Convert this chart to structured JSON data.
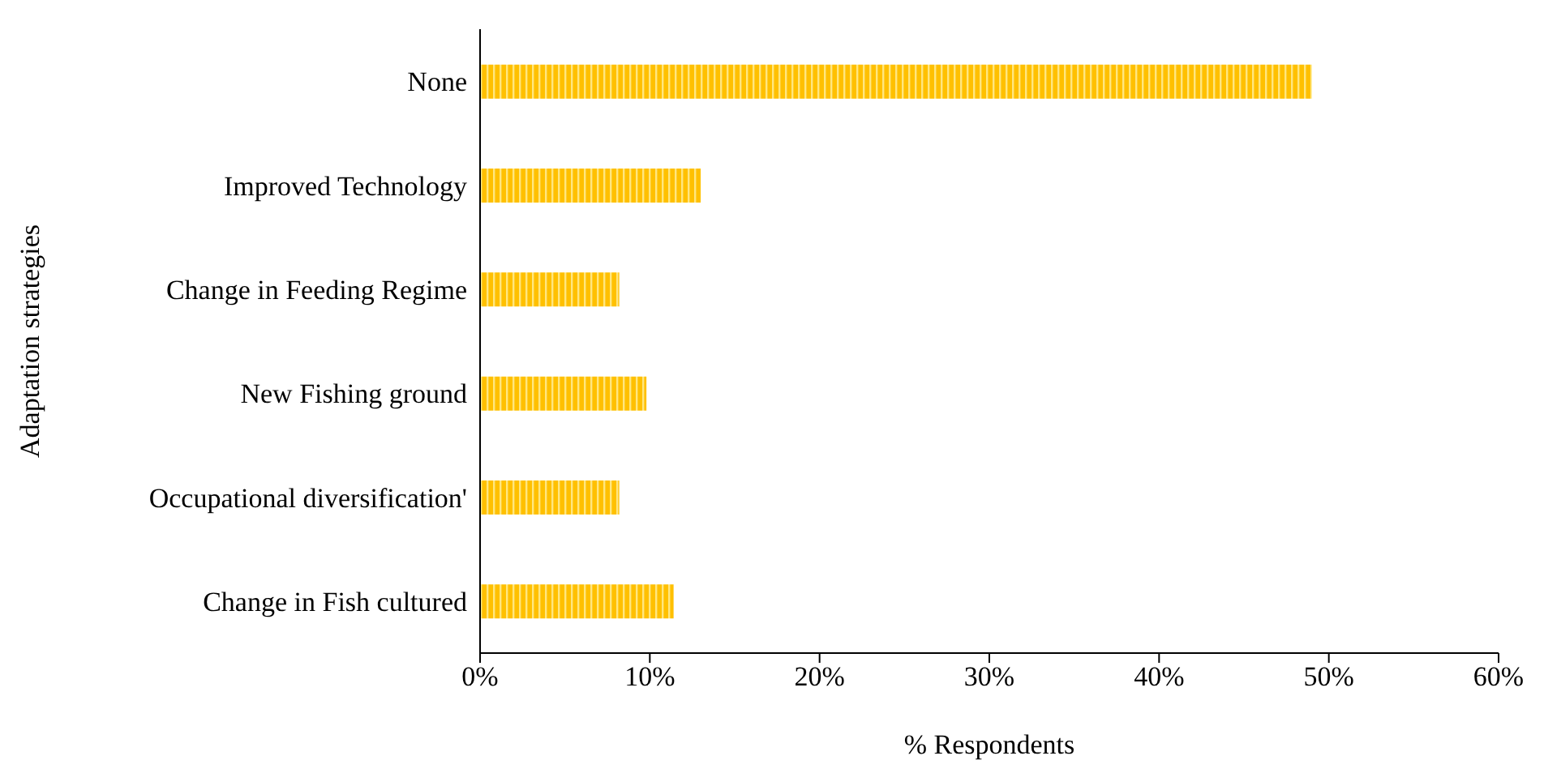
{
  "chart_data": {
    "type": "bar",
    "orientation": "horizontal",
    "ylabel": "Adaptation strategies",
    "xlabel": "% Respondents",
    "categories": [
      "None",
      "Improved Technology",
      "Change in Feeding Regime",
      "New Fishing ground",
      "Occupational diversification'",
      "Change in Fish cultured"
    ],
    "values": [
      49,
      13,
      8.2,
      9.8,
      8.2,
      11.4
    ],
    "color": "#ffc000",
    "xlim": [
      0,
      60
    ],
    "xticks": [
      {
        "value": 0,
        "label": "0%"
      },
      {
        "value": 10,
        "label": "10%"
      },
      {
        "value": 20,
        "label": "20%"
      },
      {
        "value": 30,
        "label": "30%"
      },
      {
        "value": 40,
        "label": "40%"
      },
      {
        "value": 50,
        "label": "50%"
      },
      {
        "value": 60,
        "label": "60%"
      }
    ],
    "grid": false,
    "legend": false
  }
}
